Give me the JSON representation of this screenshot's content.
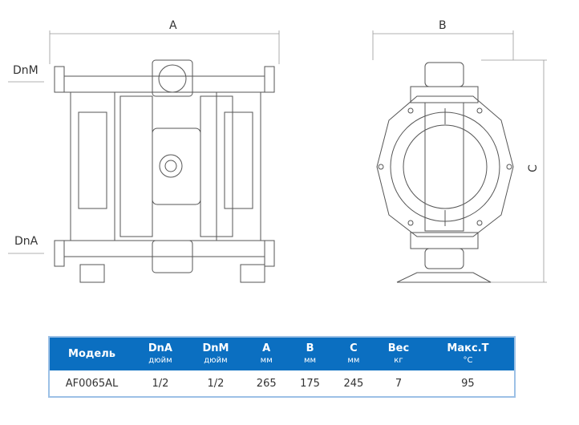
{
  "drawing": {
    "dim_a": "A",
    "dim_b": "B",
    "dim_c": "C",
    "port_dnm": "DnM",
    "port_dna": "DnA"
  },
  "table": {
    "headers": [
      {
        "label": "Модель",
        "unit": ""
      },
      {
        "label": "DnA",
        "unit": "дюйм"
      },
      {
        "label": "DnM",
        "unit": "дюйм"
      },
      {
        "label": "A",
        "unit": "мм"
      },
      {
        "label": "B",
        "unit": "мм"
      },
      {
        "label": "C",
        "unit": "мм"
      },
      {
        "label": "Вес",
        "unit": "кг"
      },
      {
        "label": "Макс.T",
        "unit": "°C"
      }
    ],
    "rows": [
      [
        "AF0065AL",
        "1/2",
        "1/2",
        "265",
        "175",
        "245",
        "7",
        "95"
      ]
    ],
    "colors": {
      "header_bg": "#0b6fc1",
      "border": "#9cc0e6"
    }
  }
}
